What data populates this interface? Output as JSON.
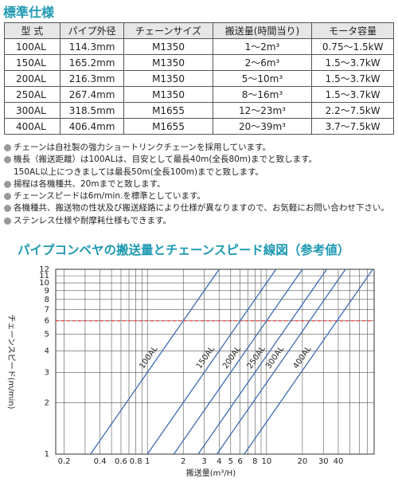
{
  "header": {
    "title": "標準仕様"
  },
  "table": {
    "columns": [
      "型 式",
      "パイプ外径",
      "チェーンサイズ",
      "搬送量(時間当り)",
      "モータ容量"
    ],
    "rows": [
      [
        "100AL",
        "114.3mm",
        "M1350",
        "1～2m³",
        "0.75～1.5kW"
      ],
      [
        "150AL",
        "165.2mm",
        "M1350",
        "2～6m³",
        "1.5～3.7kW"
      ],
      [
        "200AL",
        "216.3mm",
        "M1350",
        "5～10m³",
        "1.5～3.7kW"
      ],
      [
        "250AL",
        "267.4mm",
        "M1350",
        "8～16m³",
        "1.5～3.7kW"
      ],
      [
        "300AL",
        "318.5mm",
        "M1655",
        "12～23m³",
        "2.2～7.5kW"
      ],
      [
        "400AL",
        "406.4mm",
        "M1655",
        "20～39m³",
        "3.7～7.5kW"
      ]
    ]
  },
  "notes": [
    [
      "チェーンは自社製の強力ショートリンクチェーンを採用しています。"
    ],
    [
      "機長（搬送距離）は100ALは、目安として最長40m(全長80m)までと致します。",
      "150AL以上につきましては最長50m(全長100m)までと致します。"
    ],
    [
      "揚程は各機種共、20mまでと致します。"
    ],
    [
      "チェーンスピードは6m/min.を標準としています。"
    ],
    [
      "各機種共、搬送物の性状及び搬送経路により仕様が異なりますので、お気軽にお問い合わせ下さい。"
    ],
    [
      "ステンレス仕様や耐摩耗仕様もできます。"
    ]
  ],
  "chart_data": {
    "type": "line",
    "title": "パイプコンベヤの搬送量とチェーンスピード線図（参考値）",
    "x_label": "搬送量(m³/H)",
    "y_label": "チェーンスピード(m/min)",
    "log_x": true,
    "log_y": true,
    "grid": true,
    "xlim": [
      0.17,
      80
    ],
    "ylim": [
      1,
      12
    ],
    "xticks": [
      0.2,
      0.4,
      0.6,
      0.8,
      1,
      2,
      3,
      4,
      5,
      6,
      8,
      10,
      20,
      30,
      40
    ],
    "xminor": [
      0.3,
      0.5,
      0.7,
      0.9,
      7,
      9,
      50,
      60,
      70
    ],
    "yticks": [
      1,
      2,
      3,
      4,
      5,
      6,
      7,
      8,
      9,
      10,
      11,
      12
    ],
    "hline": {
      "value": 6,
      "color": "#e8413c"
    },
    "series": [
      {
        "name": "100AL",
        "color": "#3b6db3",
        "x": [
          0.333,
          4
        ],
        "values": [
          1,
          12
        ]
      },
      {
        "name": "150AL",
        "color": "#3b6db3",
        "x": [
          1,
          12
        ],
        "values": [
          1,
          12
        ]
      },
      {
        "name": "200AL",
        "color": "#3b6db3",
        "x": [
          1.667,
          20
        ],
        "values": [
          1,
          12
        ]
      },
      {
        "name": "250AL",
        "color": "#3b6db3",
        "x": [
          2.667,
          32
        ],
        "values": [
          1,
          12
        ]
      },
      {
        "name": "300AL",
        "color": "#3b6db3",
        "x": [
          3.833,
          46
        ],
        "values": [
          1,
          12
        ]
      },
      {
        "name": "400AL",
        "color": "#3b6db3",
        "x": [
          6.5,
          78
        ],
        "values": [
          1,
          12
        ]
      }
    ]
  }
}
